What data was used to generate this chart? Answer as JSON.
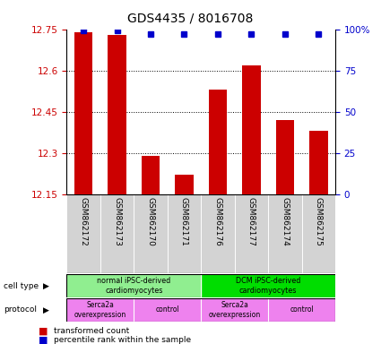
{
  "title": "GDS4435 / 8016708",
  "samples": [
    "GSM862172",
    "GSM862173",
    "GSM862170",
    "GSM862171",
    "GSM862176",
    "GSM862177",
    "GSM862174",
    "GSM862175"
  ],
  "transformed_counts": [
    12.74,
    12.73,
    12.29,
    12.22,
    12.53,
    12.62,
    12.42,
    12.38
  ],
  "percentile_ranks": [
    99,
    99,
    97,
    97,
    97,
    97,
    97,
    97
  ],
  "ylim": [
    12.15,
    12.75
  ],
  "yticks": [
    12.15,
    12.3,
    12.45,
    12.6,
    12.75
  ],
  "right_yticks": [
    0,
    25,
    50,
    75,
    100
  ],
  "bar_color": "#cc0000",
  "dot_color": "#0000cc",
  "cell_type_groups": [
    {
      "label": "normal iPSC-derived\ncardiomyocytes",
      "start": 0,
      "end": 4,
      "color": "#90ee90"
    },
    {
      "label": "DCM iPSC-derived\ncardiomyocytes",
      "start": 4,
      "end": 8,
      "color": "#00dd00"
    }
  ],
  "protocol_groups": [
    {
      "label": "Serca2a\noverexpression",
      "start": 0,
      "end": 2,
      "color": "#ee82ee"
    },
    {
      "label": "control",
      "start": 2,
      "end": 4,
      "color": "#ee82ee"
    },
    {
      "label": "Serca2a\noverexpression",
      "start": 4,
      "end": 6,
      "color": "#ee82ee"
    },
    {
      "label": "control",
      "start": 6,
      "end": 8,
      "color": "#ee82ee"
    }
  ],
  "tick_label_color_left": "#cc0000",
  "tick_label_color_right": "#0000cc",
  "sample_bg_color": "#d3d3d3"
}
